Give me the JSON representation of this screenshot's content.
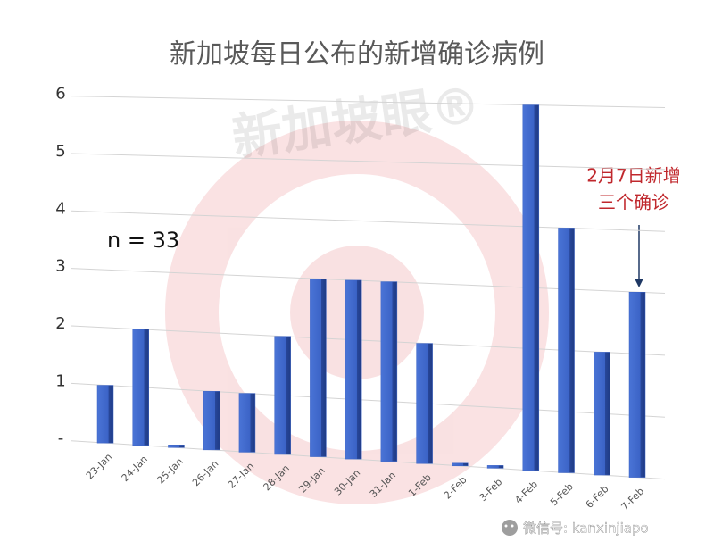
{
  "chart_data": {
    "type": "bar",
    "title": "新加坡每日公布的新增确诊病例",
    "categories": [
      "23-Jan",
      "24-Jan",
      "25-Jan",
      "26-Jan",
      "27-Jan",
      "28-Jan",
      "29-Jan",
      "30-Jan",
      "31-Jan",
      "1-Feb",
      "2-Feb",
      "3-Feb",
      "4-Feb",
      "5-Feb",
      "6-Feb",
      "7-Feb"
    ],
    "values": [
      1,
      2,
      0,
      1,
      1,
      2,
      3,
      3,
      3,
      2,
      0,
      0,
      6,
      4,
      2,
      3
    ],
    "color": "#3b63c6",
    "ylim": [
      0,
      6
    ],
    "yticks": [
      {
        "value": 0,
        "label": "-"
      },
      1,
      2,
      3,
      4,
      5,
      6
    ],
    "grid": true,
    "annotations": [
      "n = 33",
      "2月7日新增",
      "三个确诊"
    ],
    "annotation_color": "#c0282d"
  },
  "watermark": "新加坡眼®",
  "footer": "微信号: kanxinjiapo"
}
